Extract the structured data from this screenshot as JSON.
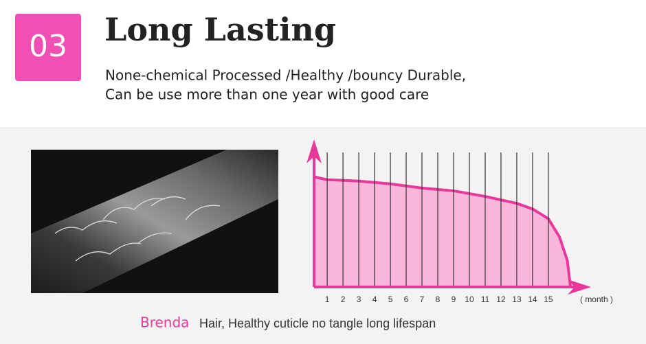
{
  "header": {
    "badge": "03",
    "title": "Long Lasting",
    "lines": [
      "None-chemical Processed /Healthy /bouncy Durable,",
      "Can be use more than one year with good care"
    ]
  },
  "caption": {
    "brand": "Brenda",
    "text": "Hair, Healthy cuticle no tangle long lifespan"
  },
  "chart_data": {
    "type": "area",
    "x_label": "( month )",
    "x": [
      0.17,
      1,
      3,
      5,
      7,
      9,
      11,
      13,
      14,
      15,
      15.7,
      16.2,
      16.4
    ],
    "values": [
      79,
      77,
      76,
      74,
      71,
      69,
      65,
      60,
      56,
      49,
      36,
      19,
      0
    ],
    "xlim": [
      0.17,
      17.7
    ],
    "ylim": [
      0,
      100
    ],
    "xticks": [
      1,
      2,
      3,
      4,
      5,
      6,
      7,
      8,
      9,
      10,
      11,
      12,
      13,
      14,
      15
    ],
    "color": "#e8389a",
    "fill": "#fbb6dc",
    "grid": true
  }
}
